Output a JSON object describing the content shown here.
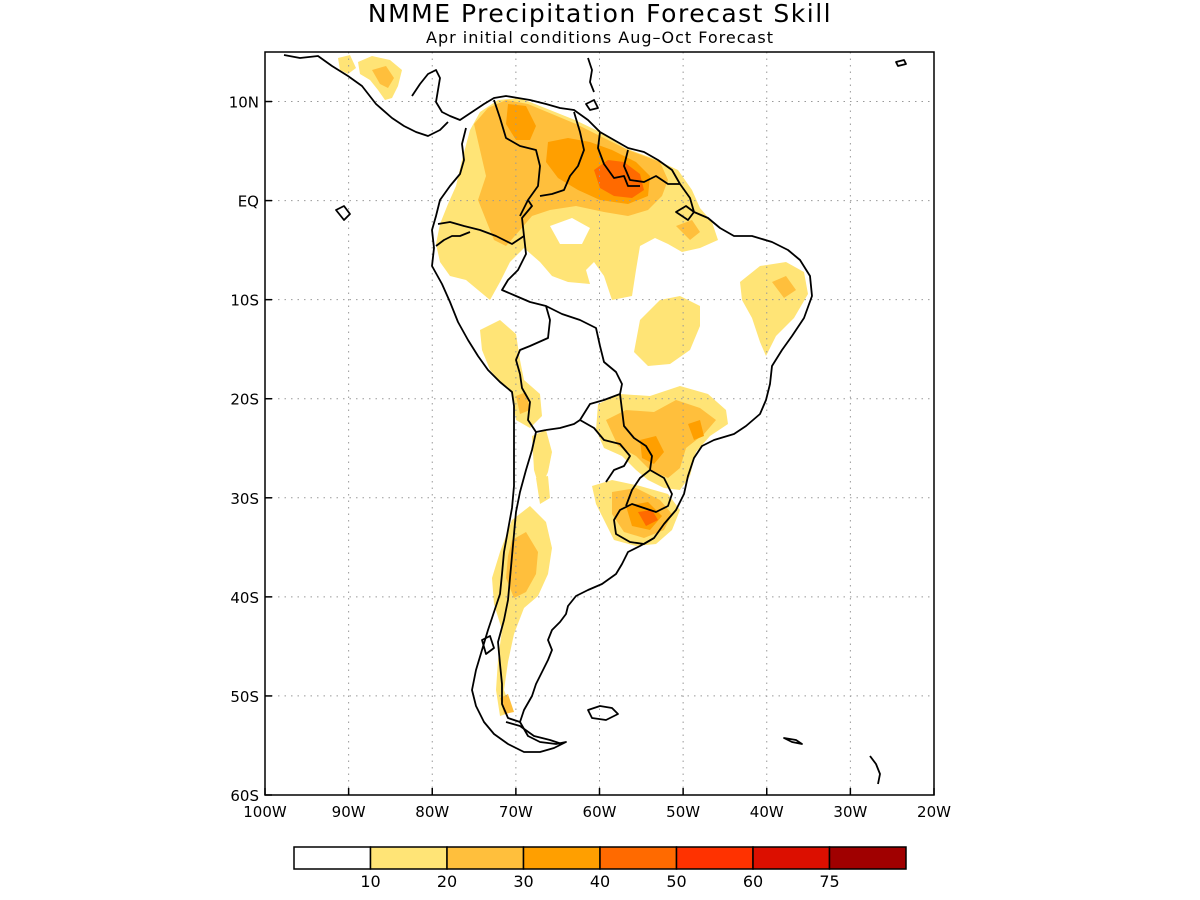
{
  "header": {
    "title": "NMME Precipitation Forecast Skill",
    "subtitle": "Apr initial conditions  Aug–Oct Forecast"
  },
  "map": {
    "region": "South America",
    "lon_range": [
      -100,
      -20
    ],
    "lat_range": [
      -60,
      15
    ],
    "lon_ticks": [
      {
        "value": -100,
        "label": "100W"
      },
      {
        "value": -90,
        "label": "90W"
      },
      {
        "value": -80,
        "label": "80W"
      },
      {
        "value": -70,
        "label": "70W"
      },
      {
        "value": -60,
        "label": "60W"
      },
      {
        "value": -50,
        "label": "50W"
      },
      {
        "value": -40,
        "label": "40W"
      },
      {
        "value": -30,
        "label": "30W"
      },
      {
        "value": -20,
        "label": "20W"
      }
    ],
    "lat_ticks": [
      {
        "value": 10,
        "label": "10N"
      },
      {
        "value": 0,
        "label": "EQ"
      },
      {
        "value": -10,
        "label": "10S"
      },
      {
        "value": -20,
        "label": "20S"
      },
      {
        "value": -30,
        "label": "30S"
      },
      {
        "value": -40,
        "label": "40S"
      },
      {
        "value": -50,
        "label": "50S"
      },
      {
        "value": -60,
        "label": "60S"
      }
    ],
    "grid": "dotted"
  },
  "colorbar": {
    "labels": [
      "10",
      "20",
      "30",
      "40",
      "50",
      "60",
      "75"
    ],
    "colors": [
      "#ffffff",
      "#ffe476",
      "#ffbf3c",
      "#ff9f00",
      "#ff6a00",
      "#ff3200",
      "#dc0f00",
      "#a00000"
    ]
  }
}
